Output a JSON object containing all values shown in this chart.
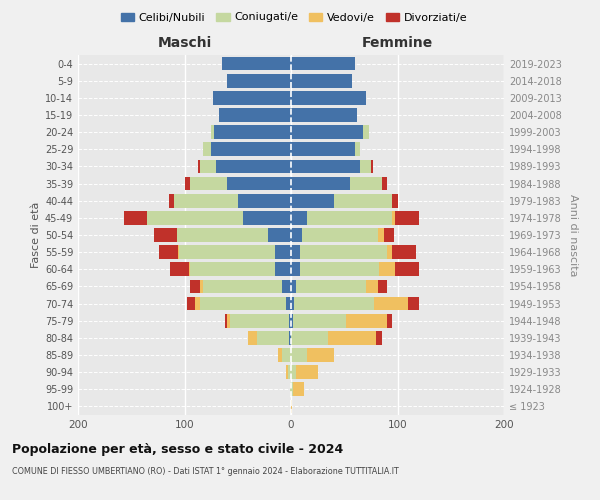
{
  "age_groups": [
    "100+",
    "95-99",
    "90-94",
    "85-89",
    "80-84",
    "75-79",
    "70-74",
    "65-69",
    "60-64",
    "55-59",
    "50-54",
    "45-49",
    "40-44",
    "35-39",
    "30-34",
    "25-29",
    "20-24",
    "15-19",
    "10-14",
    "5-9",
    "0-4"
  ],
  "birth_years": [
    "≤ 1923",
    "1924-1928",
    "1929-1933",
    "1934-1938",
    "1939-1943",
    "1944-1948",
    "1949-1953",
    "1954-1958",
    "1959-1963",
    "1964-1968",
    "1969-1973",
    "1974-1978",
    "1979-1983",
    "1984-1988",
    "1989-1993",
    "1994-1998",
    "1999-2003",
    "2004-2008",
    "2009-2013",
    "2014-2018",
    "2019-2023"
  ],
  "maschi": {
    "celibi": [
      0,
      0,
      0,
      0,
      2,
      2,
      5,
      8,
      15,
      15,
      22,
      45,
      50,
      60,
      70,
      75,
      72,
      68,
      73,
      60,
      65
    ],
    "coniugati": [
      0,
      1,
      3,
      8,
      30,
      55,
      80,
      75,
      80,
      90,
      85,
      90,
      60,
      35,
      15,
      8,
      3,
      0,
      0,
      0,
      0
    ],
    "vedovi": [
      0,
      0,
      2,
      4,
      8,
      3,
      5,
      2,
      1,
      1,
      0,
      0,
      0,
      0,
      0,
      0,
      0,
      0,
      0,
      0,
      0
    ],
    "divorziati": [
      0,
      0,
      0,
      0,
      0,
      2,
      8,
      10,
      18,
      18,
      22,
      22,
      5,
      5,
      2,
      0,
      0,
      0,
      0,
      0,
      0
    ]
  },
  "femmine": {
    "nubili": [
      0,
      0,
      0,
      0,
      0,
      2,
      3,
      5,
      8,
      8,
      10,
      15,
      40,
      55,
      65,
      60,
      68,
      62,
      70,
      57,
      60
    ],
    "coniugate": [
      0,
      2,
      5,
      15,
      35,
      50,
      75,
      65,
      75,
      82,
      72,
      80,
      55,
      30,
      10,
      5,
      5,
      0,
      0,
      0,
      0
    ],
    "vedove": [
      1,
      10,
      20,
      25,
      45,
      38,
      32,
      12,
      15,
      5,
      5,
      3,
      0,
      0,
      0,
      0,
      0,
      0,
      0,
      0,
      0
    ],
    "divorziate": [
      0,
      0,
      0,
      0,
      5,
      5,
      10,
      8,
      22,
      22,
      10,
      22,
      5,
      5,
      2,
      0,
      0,
      0,
      0,
      0,
      0
    ]
  },
  "colors": {
    "celibi": "#4472a8",
    "coniugati": "#c5d8a0",
    "vedovi": "#f0c060",
    "divorziati": "#c0312a"
  },
  "legend_labels": [
    "Celibi/Nubili",
    "Coniugati/e",
    "Vedovi/e",
    "Divorziati/e"
  ],
  "title": "Popolazione per età, sesso e stato civile - 2024",
  "subtitle": "COMUNE DI FIESSO UMBERTIANO (RO) - Dati ISTAT 1° gennaio 2024 - Elaborazione TUTTITALIA.IT",
  "xlabel_left": "Maschi",
  "xlabel_right": "Femmine",
  "ylabel_left": "Fasce di età",
  "ylabel_right": "Anni di nascita",
  "xlim": 200,
  "bg_color": "#f0f0f0",
  "plot_bg": "#e8e8e8"
}
